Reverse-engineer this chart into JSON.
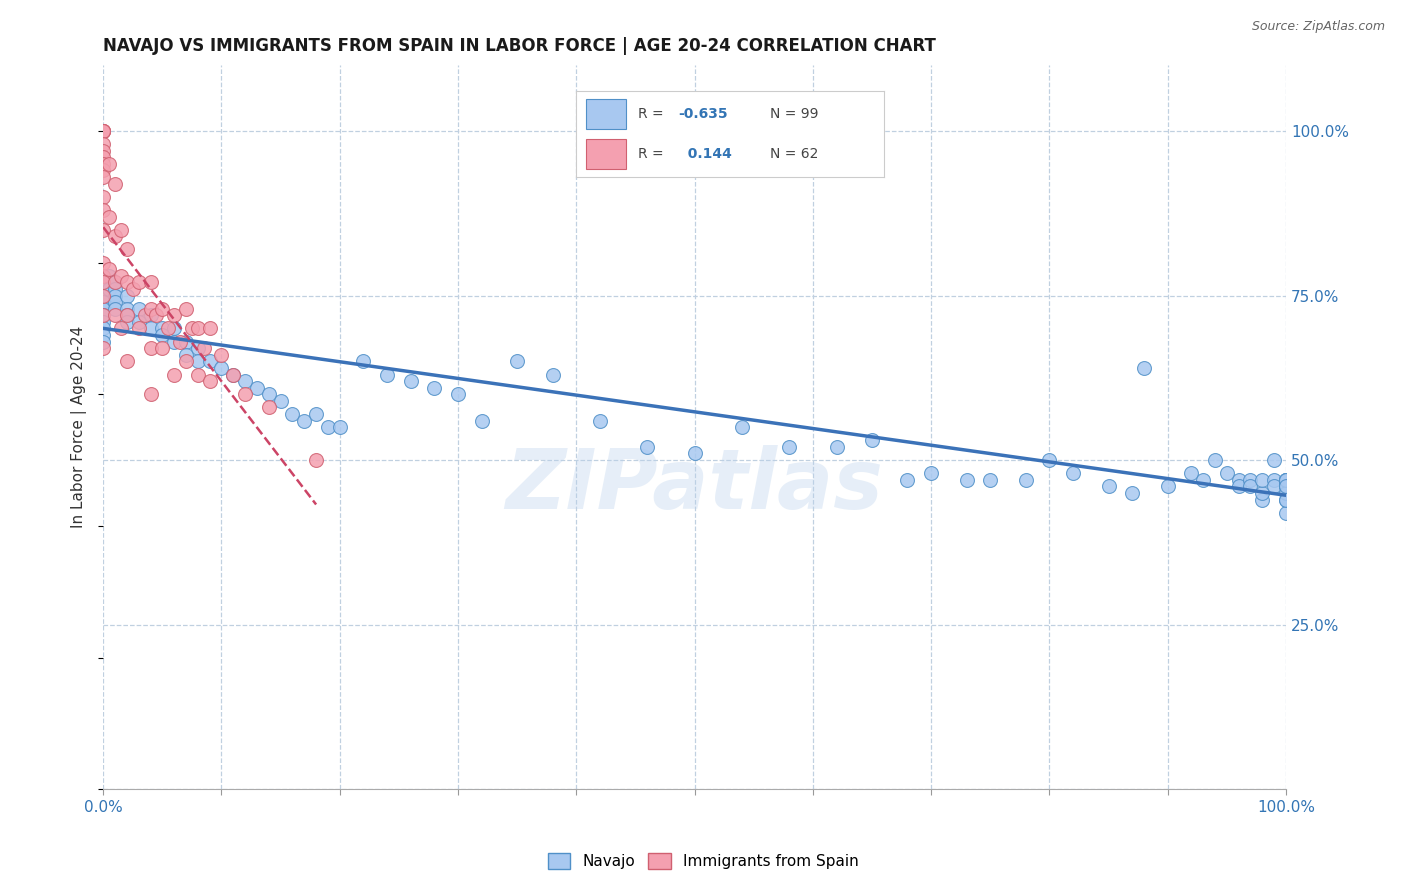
{
  "title": "NAVAJO VS IMMIGRANTS FROM SPAIN IN LABOR FORCE | AGE 20-24 CORRELATION CHART",
  "source": "Source: ZipAtlas.com",
  "ylabel": "In Labor Force | Age 20-24",
  "watermark": "ZIPatlas",
  "blue_color": "#A8C8F0",
  "pink_color": "#F4A0B0",
  "blue_edge_color": "#5090C8",
  "pink_edge_color": "#D06070",
  "blue_line_color": "#3B72B8",
  "pink_line_color": "#CC4466",
  "grid_color": "#C0D0E0",
  "background_color": "#FFFFFF",
  "right_tick_color": "#3375B5",
  "xlim": [
    0,
    1
  ],
  "ylim": [
    0,
    1.1
  ],
  "navajo_x": [
    0.0,
    0.0,
    0.0,
    0.0,
    0.0,
    0.0,
    0.0,
    0.0,
    0.0,
    0.0,
    0.0,
    0.005,
    0.005,
    0.01,
    0.01,
    0.01,
    0.01,
    0.01,
    0.02,
    0.02,
    0.02,
    0.02,
    0.03,
    0.03,
    0.04,
    0.04,
    0.05,
    0.05,
    0.06,
    0.06,
    0.07,
    0.07,
    0.08,
    0.08,
    0.09,
    0.1,
    0.11,
    0.12,
    0.13,
    0.14,
    0.15,
    0.16,
    0.17,
    0.18,
    0.19,
    0.2,
    0.22,
    0.24,
    0.26,
    0.28,
    0.3,
    0.32,
    0.35,
    0.38,
    0.42,
    0.46,
    0.5,
    0.54,
    0.58,
    0.62,
    0.65,
    0.68,
    0.7,
    0.73,
    0.75,
    0.78,
    0.8,
    0.82,
    0.85,
    0.87,
    0.88,
    0.9,
    0.92,
    0.93,
    0.94,
    0.95,
    0.96,
    0.96,
    0.97,
    0.97,
    0.98,
    0.98,
    0.98,
    0.99,
    0.99,
    0.99,
    1.0,
    1.0,
    1.0,
    1.0,
    1.0,
    1.0,
    1.0,
    1.0,
    1.0,
    1.0,
    1.0,
    1.0,
    1.0
  ],
  "navajo_y": [
    0.77,
    0.76,
    0.76,
    0.75,
    0.74,
    0.73,
    0.72,
    0.71,
    0.7,
    0.69,
    0.68,
    0.78,
    0.76,
    0.77,
    0.76,
    0.75,
    0.74,
    0.73,
    0.75,
    0.73,
    0.72,
    0.71,
    0.73,
    0.71,
    0.72,
    0.7,
    0.7,
    0.69,
    0.7,
    0.68,
    0.68,
    0.66,
    0.67,
    0.65,
    0.65,
    0.64,
    0.63,
    0.62,
    0.61,
    0.6,
    0.59,
    0.57,
    0.56,
    0.57,
    0.55,
    0.55,
    0.65,
    0.63,
    0.62,
    0.61,
    0.6,
    0.56,
    0.65,
    0.63,
    0.56,
    0.52,
    0.51,
    0.55,
    0.52,
    0.52,
    0.53,
    0.47,
    0.48,
    0.47,
    0.47,
    0.47,
    0.5,
    0.48,
    0.46,
    0.45,
    0.64,
    0.46,
    0.48,
    0.47,
    0.5,
    0.48,
    0.47,
    0.46,
    0.47,
    0.46,
    0.44,
    0.45,
    0.47,
    0.5,
    0.47,
    0.46,
    0.47,
    0.47,
    0.46,
    0.46,
    0.47,
    0.46,
    0.44,
    0.47,
    0.42,
    0.45,
    0.44,
    0.47,
    0.46
  ],
  "spain_x": [
    0.0,
    0.0,
    0.0,
    0.0,
    0.0,
    0.0,
    0.0,
    0.0,
    0.0,
    0.0,
    0.0,
    0.0,
    0.0,
    0.0,
    0.0,
    0.0,
    0.0,
    0.0,
    0.0,
    0.0,
    0.005,
    0.005,
    0.005,
    0.01,
    0.01,
    0.01,
    0.01,
    0.015,
    0.015,
    0.015,
    0.02,
    0.02,
    0.02,
    0.02,
    0.025,
    0.03,
    0.03,
    0.035,
    0.04,
    0.04,
    0.04,
    0.04,
    0.045,
    0.05,
    0.05,
    0.055,
    0.06,
    0.06,
    0.065,
    0.07,
    0.07,
    0.075,
    0.08,
    0.08,
    0.085,
    0.09,
    0.09,
    0.1,
    0.11,
    0.12,
    0.14,
    0.18
  ],
  "spain_y": [
    1.0,
    1.0,
    1.0,
    1.0,
    1.0,
    0.98,
    0.97,
    0.96,
    0.95,
    0.94,
    0.93,
    0.9,
    0.88,
    0.85,
    0.8,
    0.78,
    0.77,
    0.75,
    0.72,
    0.67,
    0.95,
    0.87,
    0.79,
    0.92,
    0.84,
    0.77,
    0.72,
    0.85,
    0.78,
    0.7,
    0.82,
    0.77,
    0.72,
    0.65,
    0.76,
    0.77,
    0.7,
    0.72,
    0.77,
    0.73,
    0.67,
    0.6,
    0.72,
    0.73,
    0.67,
    0.7,
    0.72,
    0.63,
    0.68,
    0.73,
    0.65,
    0.7,
    0.7,
    0.63,
    0.67,
    0.7,
    0.62,
    0.66,
    0.63,
    0.6,
    0.58,
    0.5
  ],
  "xtick_positions": [
    0.0,
    0.1,
    0.2,
    0.3,
    0.4,
    0.5,
    0.6,
    0.7,
    0.8,
    0.9,
    1.0
  ],
  "ytick_right": [
    0.25,
    0.5,
    0.75,
    1.0
  ],
  "ytick_right_labels": [
    "25.0%",
    "50.0%",
    "75.0%",
    "100.0%"
  ]
}
